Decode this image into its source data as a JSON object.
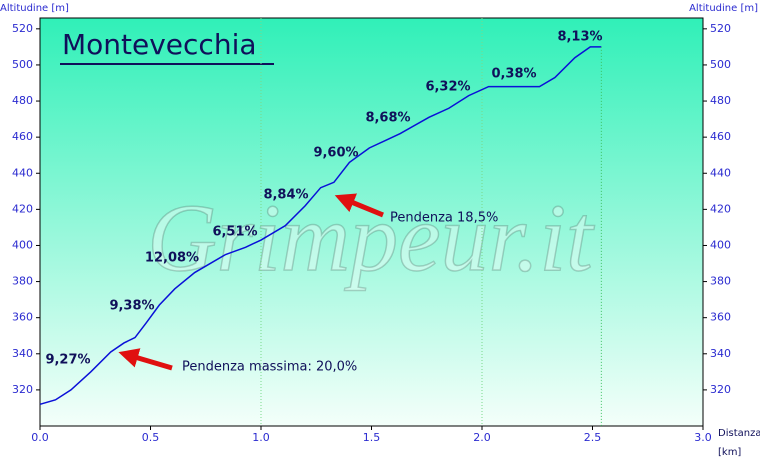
{
  "chart_data": {
    "type": "line",
    "title": "Montevecchia",
    "watermark": "Grimpeur.it",
    "y_label": "Altitudine [m]",
    "y2_label": "Altitudine [m]",
    "x_label": "Distanza",
    "x_unit": "[km]",
    "x": [
      0,
      0.07,
      0.14,
      0.23,
      0.32,
      0.38,
      0.43,
      0.48,
      0.54,
      0.61,
      0.7,
      0.84,
      0.93,
      1.0,
      1.11,
      1.2,
      1.27,
      1.33,
      1.4,
      1.49,
      1.63,
      1.76,
      1.85,
      1.94,
      2.03,
      2.26,
      2.33,
      2.42,
      2.49,
      2.54
    ],
    "series": [
      {
        "color": "#0a10d8",
        "values": [
          312,
          314.5,
          320,
          330,
          341,
          346,
          349,
          357,
          367,
          376,
          385,
          395,
          399,
          403,
          411,
          422,
          432,
          435,
          446,
          454,
          462,
          471,
          476,
          483,
          488,
          488,
          493,
          504,
          510,
          510
        ]
      }
    ],
    "xlim": [
      0,
      3
    ],
    "ylim": [
      300,
      526
    ],
    "xticks": [
      {
        "value": 0,
        "label": "0.0"
      },
      0.5,
      {
        "value": 1,
        "label": "1.0"
      },
      1.5,
      {
        "value": 2,
        "label": "2.0"
      },
      2.5,
      {
        "value": 3,
        "label": "3.0"
      }
    ],
    "yticks": [
      320,
      340,
      360,
      380,
      400,
      420,
      440,
      460,
      480,
      500,
      520
    ],
    "grade_labels": [
      "9,27%",
      "9,38%",
      "12,08%",
      "6,51%",
      "8,84%",
      "9,60%",
      "8,68%",
      "6,32%",
      "0,38%",
      "8,13%"
    ],
    "annotations": [
      "Pendenza 18,5%",
      "Pendenza massima: 20,0%"
    ]
  }
}
